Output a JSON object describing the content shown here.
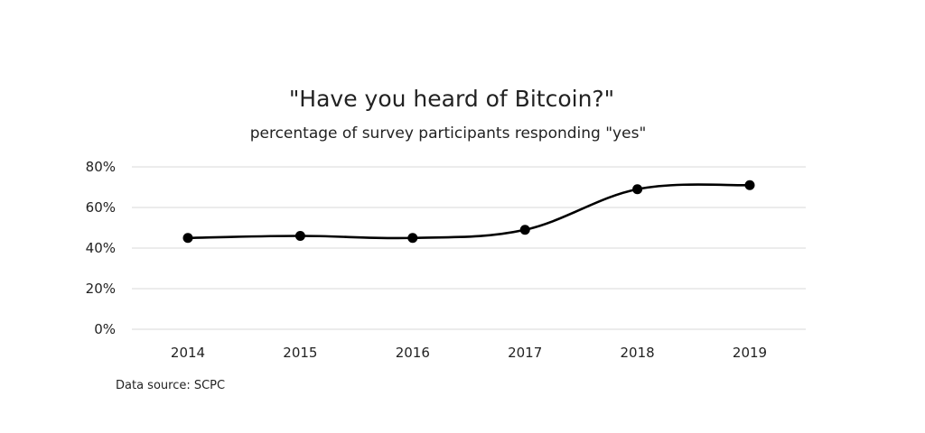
{
  "chart_data": {
    "type": "line",
    "title": "\"Have you heard of Bitcoin?\"",
    "subtitle": "percentage of survey participants responding \"yes\"",
    "xlabel": "",
    "ylabel": "",
    "categories": [
      "2014",
      "2015",
      "2016",
      "2017",
      "2018",
      "2019"
    ],
    "series": [
      {
        "values": [
          45,
          46,
          45,
          49,
          69,
          71
        ]
      }
    ],
    "ylim": [
      0,
      80
    ],
    "yticks": [
      0,
      20,
      40,
      60,
      80
    ],
    "ytick_labels": [
      "0%",
      "20%",
      "40%",
      "60%",
      "80%"
    ],
    "y_unit": "%",
    "grid": true,
    "legend": "none",
    "line_style": "smoothed",
    "line_color": "#000000",
    "marker_color": "#000000",
    "grid_color": "#d9d9d9",
    "source_note": "Data source: SCPC"
  }
}
